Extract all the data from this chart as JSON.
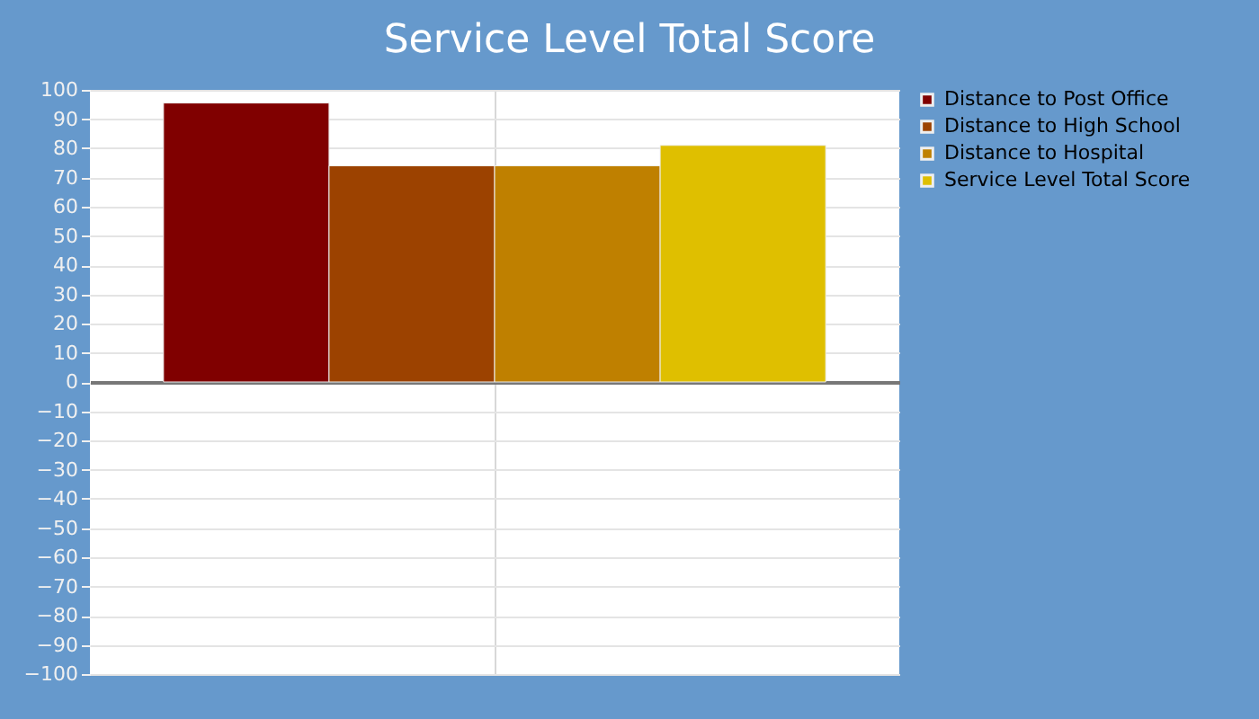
{
  "chart_data": {
    "type": "bar",
    "title": "Service Level Total Score",
    "categories": [
      null
    ],
    "series": [
      {
        "name": "Distance to Post Office",
        "color": "#800000",
        "values": [
          95.5
        ]
      },
      {
        "name": "Distance to High School",
        "color": "#9c4200",
        "values": [
          74
        ]
      },
      {
        "name": "Distance to Hospital",
        "color": "#bf8000",
        "values": [
          74
        ]
      },
      {
        "name": "Service Level Total Score",
        "color": "#dfbf00",
        "values": [
          81
        ]
      }
    ],
    "ylim": [
      -100,
      100
    ],
    "yticks": [
      -100,
      -90,
      -80,
      -70,
      -60,
      -50,
      -40,
      -30,
      -20,
      -10,
      0,
      10,
      20,
      30,
      40,
      50,
      60,
      70,
      80,
      90,
      100
    ],
    "grid": true,
    "legend": "top right",
    "tick_labels": "y"
  }
}
